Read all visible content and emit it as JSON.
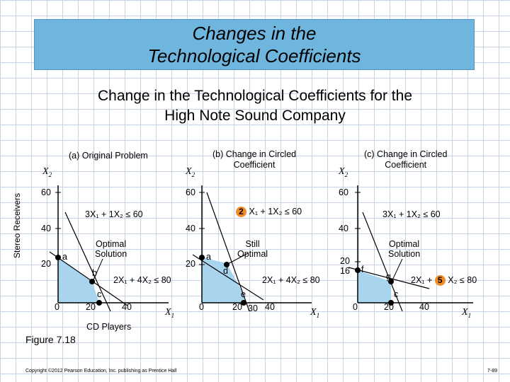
{
  "header": {
    "title_line1": "Changes in the",
    "title_line2": "Technological Coefficients",
    "subtitle_line1": "Change in the Technological Coefficients for the",
    "subtitle_line2": "High Note Sound Company"
  },
  "axes": {
    "y_side_label": "Stereo Receivers",
    "x_bottom_label": "CD Players",
    "x_var": "X",
    "x_sub": "1",
    "y_var": "X",
    "y_sub": "2"
  },
  "panels": {
    "a": {
      "title": "(a) Original Problem",
      "y_ticks": [
        "60",
        "40",
        "20"
      ],
      "x_ticks": [
        "0",
        "20",
        "40"
      ],
      "constraint1": "3X₁ + 1X₂ ≤ 60",
      "constraint2": "2X₁ + 4X₂ ≤ 80",
      "optimal": "Optimal\nSolution",
      "points": [
        "a",
        "b",
        "c"
      ]
    },
    "b": {
      "title_line1": "(b) Change in Circled",
      "title_line2": "Coefficient",
      "y_ticks": [
        "60",
        "40",
        "20"
      ],
      "x_ticks": [
        "0",
        "20",
        "30",
        "40"
      ],
      "circled": "2",
      "constraint1_rest": "X₁ + 1X₂ ≤ 60",
      "constraint2": "2X₁ + 4X₂ ≤ 80",
      "still_optimal_line1": "Still",
      "still_optimal_line2": "Optimal",
      "points": [
        "a",
        "d",
        "e"
      ]
    },
    "c": {
      "title_line1": "(c) Change in Circled",
      "title_line2": "Coefficient",
      "y_ticks": [
        "60",
        "40",
        "20",
        "16"
      ],
      "x_ticks": [
        "0",
        "20",
        "40"
      ],
      "constraint1": "3X₁ + 1X₂ ≤ 60",
      "constraint2_pre": "2X₁ +",
      "circled": "5",
      "constraint2_post": "X₂ ≤ 80",
      "optimal_line1": "Optimal",
      "optimal_line2": "Solution",
      "points": [
        "f",
        "g",
        "c"
      ]
    }
  },
  "footer": {
    "figure": "Figure 7.18",
    "copyright": "Copyright ©2012 Pearson Education, Inc. publishing as Prentice Hall",
    "page": "7-89"
  },
  "colors": {
    "title_bg": "#6fb6df",
    "feasible_region": "#a9d4ee",
    "circle_highlight": "#f28a25"
  }
}
